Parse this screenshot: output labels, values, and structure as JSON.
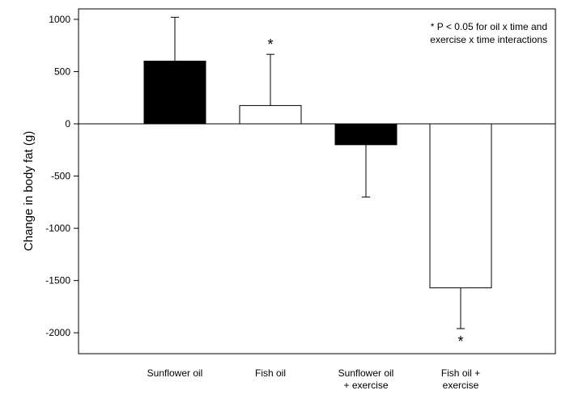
{
  "chart_data": {
    "type": "bar",
    "title": "",
    "xlabel": "",
    "ylabel": "Change in body fat (g)",
    "ylim": [
      -2200,
      1100
    ],
    "yticks": [
      1000,
      500,
      0,
      -500,
      -1000,
      -1500,
      -2000
    ],
    "grid": false,
    "categories": [
      [
        "Sunflower oil"
      ],
      [
        "Fish oil"
      ],
      [
        "Sunflower oil",
        "+ exercise"
      ],
      [
        "Fish oil +",
        "exercise"
      ]
    ],
    "values": [
      600,
      175,
      -200,
      -1570
    ],
    "errors": [
      420,
      490,
      500,
      390
    ],
    "bar_colors": [
      "#000000",
      "#ffffff",
      "#000000",
      "#ffffff"
    ],
    "significance": [
      "",
      "*",
      "",
      "*"
    ],
    "annotation": [
      "* P < 0.05 for oil x time and",
      "exercise x time interactions"
    ]
  }
}
